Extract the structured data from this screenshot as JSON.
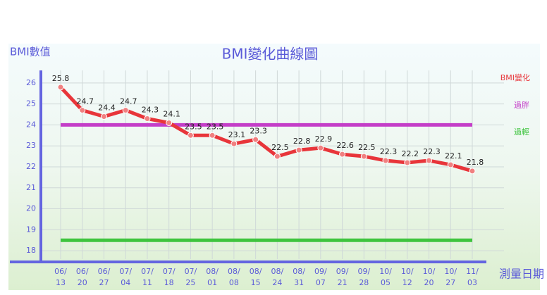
{
  "chart_data": {
    "type": "line",
    "title": "BMI變化曲線圖",
    "y_label": "BMI數值",
    "x_label": "測量日期",
    "categories": [
      "06/13",
      "06/20",
      "06/27",
      "07/04",
      "07/11",
      "07/18",
      "07/25",
      "08/01",
      "08/08",
      "08/15",
      "08/24",
      "08/31",
      "09/07",
      "09/21",
      "09/28",
      "10/05",
      "10/12",
      "10/20",
      "10/27",
      "11/03"
    ],
    "series": [
      {
        "name": "BMI變化",
        "color": "#e8353a",
        "values": [
          25.8,
          24.7,
          24.4,
          24.7,
          24.3,
          24.1,
          23.5,
          23.5,
          23.1,
          23.3,
          22.5,
          22.8,
          22.9,
          22.6,
          22.5,
          22.3,
          22.2,
          22.3,
          22.1,
          21.8
        ]
      }
    ],
    "reference_lines": [
      {
        "name": "過胖",
        "value": 24,
        "color": "#c43ec8"
      },
      {
        "name": "過輕",
        "value": 18.5,
        "color": "#3ec43e"
      }
    ],
    "ylim": [
      17.6,
      26.6
    ],
    "yticks": [
      18,
      19,
      20,
      21,
      22,
      23,
      24,
      25,
      26
    ],
    "grid": true
  }
}
